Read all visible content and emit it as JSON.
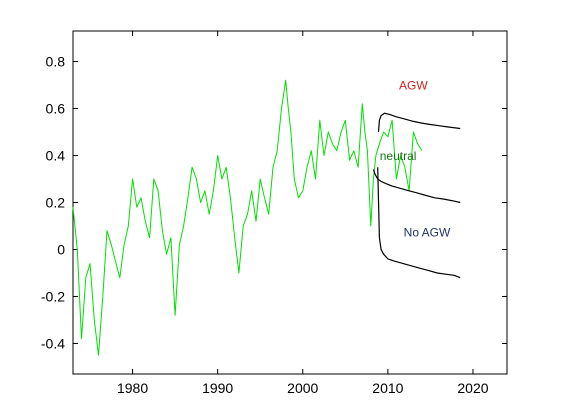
{
  "chart_data": {
    "type": "line",
    "title": "",
    "xlabel": "",
    "ylabel": "",
    "xlim": [
      1973,
      2024
    ],
    "ylim": [
      -0.53,
      0.93
    ],
    "grid": false,
    "x_ticks": [
      1980,
      1990,
      2000,
      2010,
      2020
    ],
    "x_tick_labels": [
      "1980",
      "1990",
      "2000",
      "2010",
      "2020"
    ],
    "y_ticks": [
      -0.4,
      -0.2,
      0,
      0.2,
      0.4,
      0.6,
      0.8
    ],
    "y_tick_labels": [
      "-0.4",
      "-0.2",
      "0",
      "0.2",
      "0.4",
      "0.6",
      "0.8"
    ],
    "series": [
      {
        "color": "#00e000",
        "x": [
          1973.0,
          1973.5,
          1974.0,
          1974.5,
          1975.0,
          1975.5,
          1976.0,
          1976.5,
          1977.0,
          1977.5,
          1978.0,
          1978.5,
          1979.0,
          1979.5,
          1980.0,
          1980.5,
          1981.0,
          1981.5,
          1982.0,
          1982.5,
          1983.0,
          1983.5,
          1984.0,
          1984.5,
          1985.0,
          1985.5,
          1986.0,
          1986.5,
          1987.0,
          1987.5,
          1988.0,
          1988.5,
          1989.0,
          1989.5,
          1990.0,
          1990.5,
          1991.0,
          1991.5,
          1992.0,
          1992.5,
          1993.0,
          1993.5,
          1994.0,
          1994.5,
          1995.0,
          1995.5,
          1996.0,
          1996.5,
          1997.0,
          1997.5,
          1998.0,
          1998.3,
          1998.6,
          1999.0,
          1999.5,
          2000.0,
          2000.5,
          2001.0,
          2001.5,
          2002.0,
          2002.5,
          2003.0,
          2003.5,
          2004.0,
          2004.5,
          2005.0,
          2005.5,
          2006.0,
          2006.5,
          2007.0,
          2007.3,
          2007.6,
          2008.0,
          2008.3,
          2008.6,
          2009.0,
          2009.5,
          2010.0,
          2010.5,
          2011.0,
          2011.5,
          2012.0,
          2012.5,
          2013.0,
          2013.5,
          2014.0
        ],
        "y": [
          0.18,
          0.0,
          -0.38,
          -0.12,
          -0.06,
          -0.3,
          -0.45,
          -0.2,
          0.08,
          0.02,
          -0.05,
          -0.12,
          0.02,
          0.1,
          0.3,
          0.18,
          0.22,
          0.12,
          0.05,
          0.3,
          0.25,
          0.08,
          -0.02,
          0.05,
          -0.28,
          0.02,
          0.1,
          0.22,
          0.35,
          0.3,
          0.2,
          0.25,
          0.15,
          0.25,
          0.4,
          0.3,
          0.35,
          0.22,
          0.05,
          -0.1,
          0.1,
          0.15,
          0.25,
          0.12,
          0.3,
          0.22,
          0.15,
          0.35,
          0.42,
          0.6,
          0.72,
          0.6,
          0.5,
          0.3,
          0.22,
          0.25,
          0.35,
          0.42,
          0.3,
          0.55,
          0.4,
          0.5,
          0.45,
          0.42,
          0.5,
          0.55,
          0.38,
          0.42,
          0.35,
          0.62,
          0.5,
          0.42,
          0.1,
          0.3,
          0.4,
          0.45,
          0.5,
          0.48,
          0.55,
          0.3,
          0.4,
          0.35,
          0.25,
          0.5,
          0.45,
          0.42
        ]
      },
      {
        "color": "#000000",
        "x": [
          2008.9,
          2009.0,
          2009.2,
          2009.6,
          2010.2,
          2011,
          2012,
          2013,
          2014,
          2015,
          2016,
          2017,
          2018.5
        ],
        "y": [
          0.5,
          0.55,
          0.57,
          0.58,
          0.575,
          0.565,
          0.555,
          0.545,
          0.538,
          0.532,
          0.527,
          0.522,
          0.515
        ]
      },
      {
        "color": "#000000",
        "x": [
          2008.3,
          2008.5,
          2008.8,
          2009.2,
          2009.8,
          2010.5,
          2011.5,
          2012.5,
          2013.5,
          2014.5,
          2015.5,
          2016.5,
          2017.5,
          2018.5
        ],
        "y": [
          0.34,
          0.32,
          0.3,
          0.29,
          0.28,
          0.27,
          0.26,
          0.25,
          0.24,
          0.23,
          0.22,
          0.215,
          0.208,
          0.2
        ]
      },
      {
        "color": "#000000",
        "x": [
          2008.8,
          2009.0,
          2009.2,
          2009.5,
          2010.0,
          2010.8,
          2011.8,
          2012.8,
          2013.8,
          2014.8,
          2015.8,
          2016.8,
          2017.8,
          2018.5
        ],
        "y": [
          0.35,
          0.05,
          0.0,
          -0.02,
          -0.04,
          -0.05,
          -0.06,
          -0.07,
          -0.08,
          -0.09,
          -0.1,
          -0.105,
          -0.11,
          -0.12
        ]
      }
    ],
    "annotations": [
      {
        "text": "AGW",
        "x": 2013.0,
        "y": 0.68,
        "color": "#cc2222"
      },
      {
        "text": "neutral",
        "x": 2011.2,
        "y": 0.38,
        "color": "#117711"
      },
      {
        "text": "No AGW",
        "x": 2014.6,
        "y": 0.055,
        "color": "#223366"
      }
    ]
  }
}
